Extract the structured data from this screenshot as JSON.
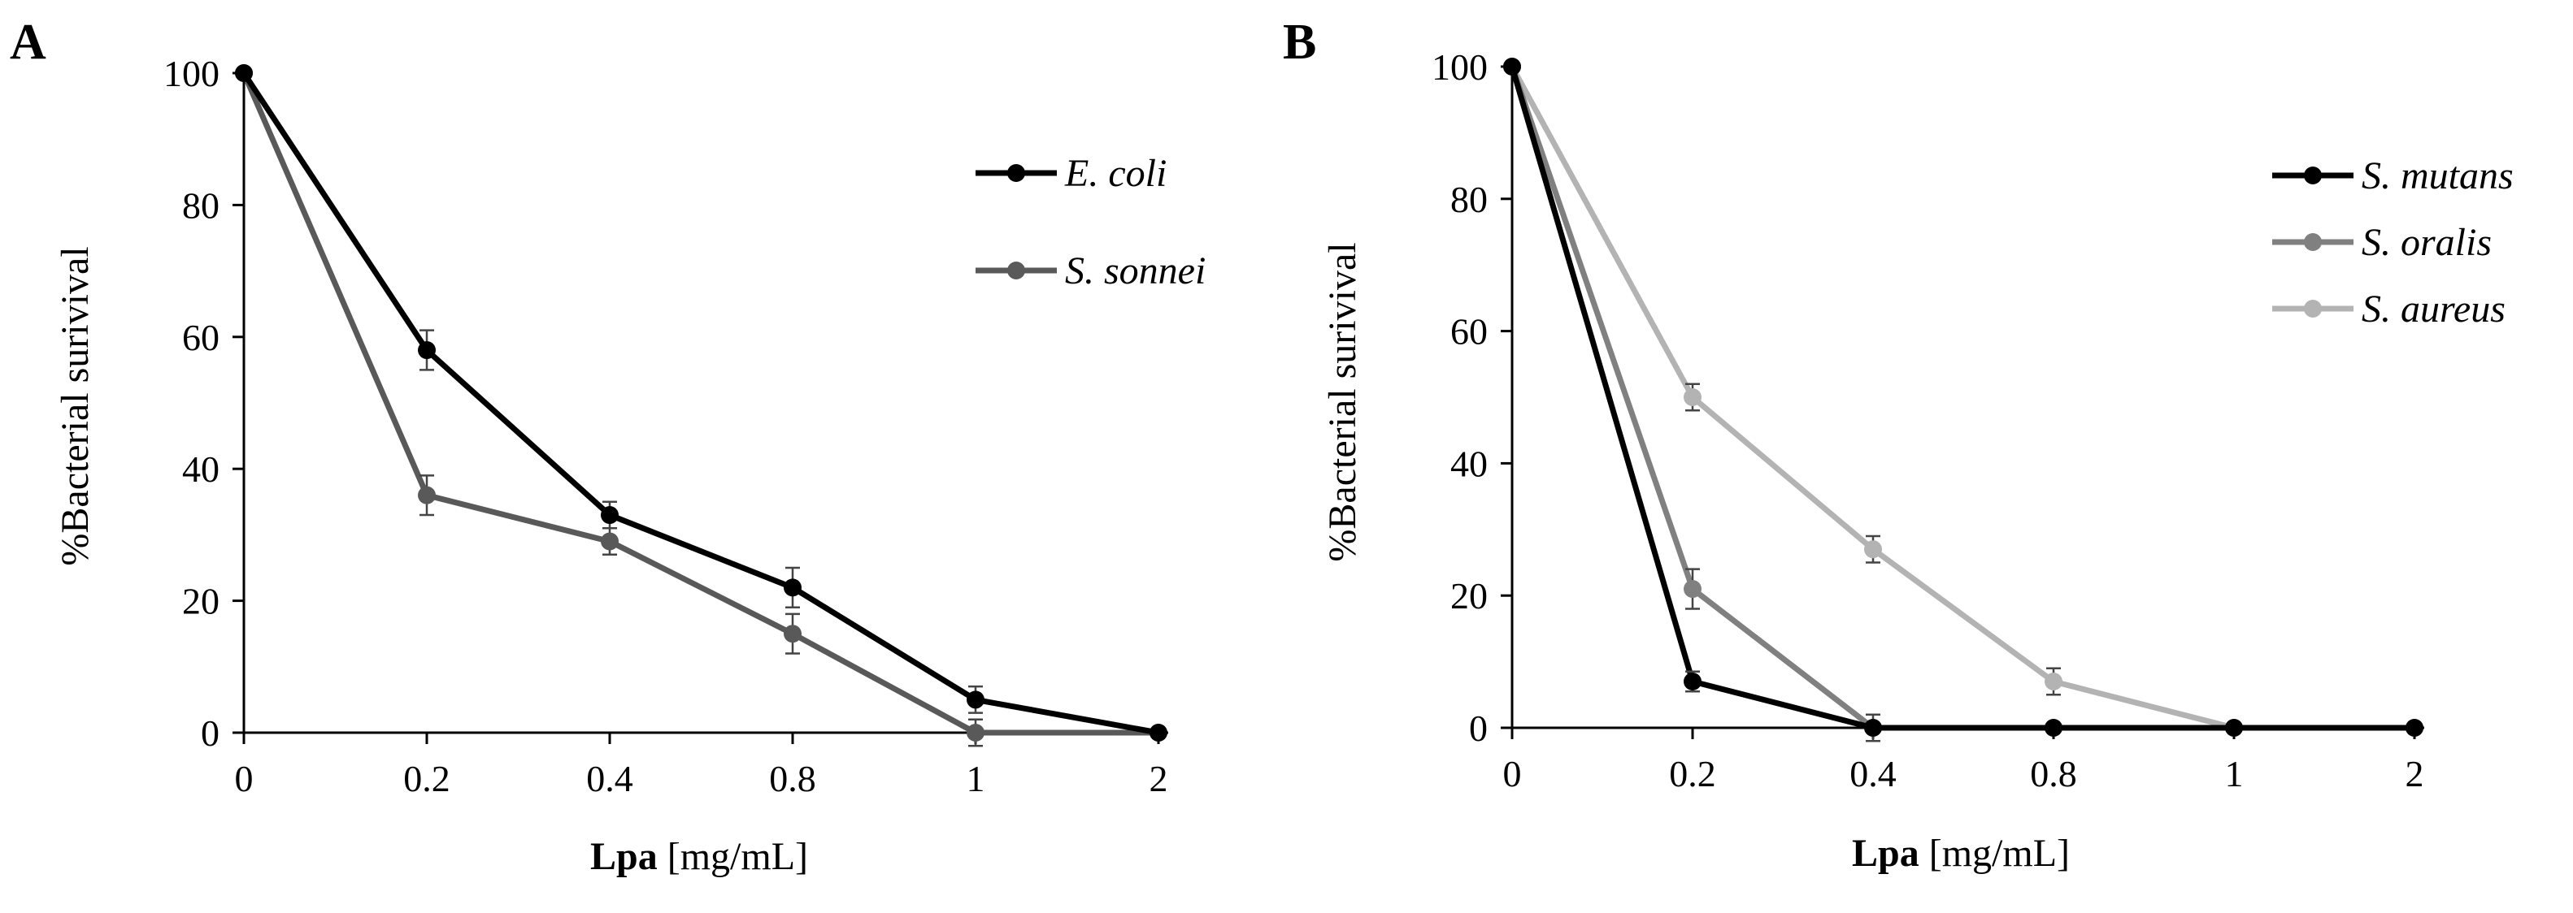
{
  "chart_data": [
    {
      "type": "line",
      "panel_label": "A",
      "categories": [
        "0",
        "0.2",
        "0.4",
        "0.8",
        "1",
        "2"
      ],
      "ylabel": "%Bacterial surivival",
      "xlabel_bold": "Lpa",
      "xlabel_rest": " [mg/mL]",
      "ylim": [
        0,
        100
      ],
      "yticks": [
        0,
        20,
        40,
        60,
        80,
        100
      ],
      "legend_position": "top-right",
      "series": [
        {
          "name": "E. coli",
          "color": "#000000",
          "values": [
            100,
            58,
            33,
            22,
            5,
            0
          ],
          "errors": [
            0,
            3,
            2,
            3,
            2,
            0
          ]
        },
        {
          "name": "S. sonnei",
          "color": "#595959",
          "values": [
            100,
            36,
            29,
            15,
            0,
            0
          ],
          "errors": [
            0,
            3,
            2,
            3,
            2,
            0
          ]
        }
      ]
    },
    {
      "type": "line",
      "panel_label": "B",
      "categories": [
        "0",
        "0.2",
        "0.4",
        "0.8",
        "1",
        "2"
      ],
      "ylabel": "%Bacterial surivival",
      "xlabel_bold": "Lpa",
      "xlabel_rest": " [mg/mL]",
      "ylim": [
        0,
        100
      ],
      "yticks": [
        0,
        20,
        40,
        60,
        80,
        100
      ],
      "legend_position": "top-right",
      "series": [
        {
          "name": "S. mutans",
          "color": "#000000",
          "values": [
            100,
            7,
            0,
            0,
            0,
            0
          ],
          "errors": [
            0,
            1.5,
            0,
            0,
            0,
            0
          ]
        },
        {
          "name": "S. oralis",
          "color": "#808080",
          "values": [
            100,
            21,
            0,
            0,
            0,
            0
          ],
          "errors": [
            0,
            3,
            2,
            0,
            0,
            0
          ]
        },
        {
          "name": "S. aureus",
          "color": "#b3b3b3",
          "values": [
            100,
            50,
            27,
            7,
            0,
            0
          ],
          "errors": [
            0,
            2,
            2,
            2,
            0,
            0
          ]
        }
      ]
    }
  ]
}
